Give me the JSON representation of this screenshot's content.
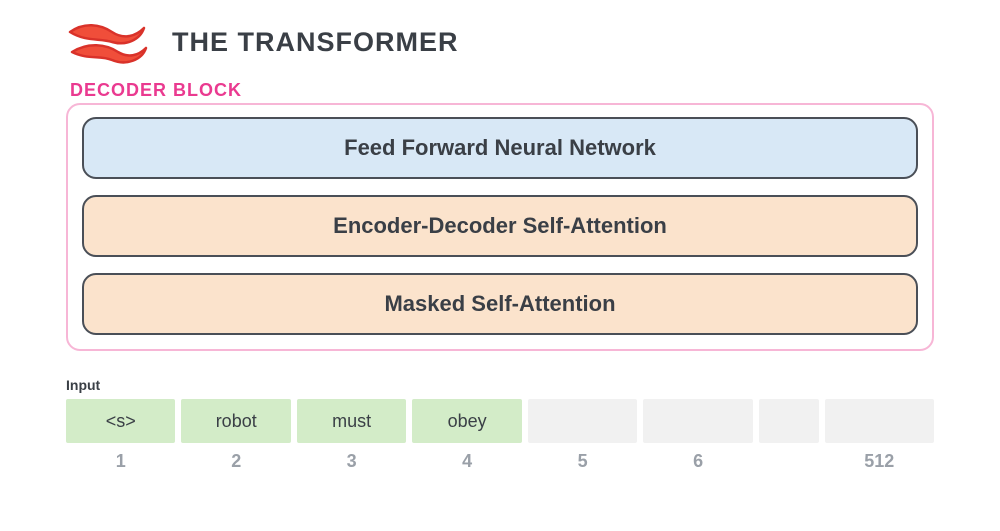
{
  "header": {
    "title": "THE TRANSFORMER",
    "title_color": "#3a3f46",
    "logo_colors": {
      "stroke": "#d9322a",
      "fill": "#f04e3a"
    }
  },
  "decoder": {
    "label": "DECODER BLOCK",
    "label_color": "#ea3a90",
    "border_color": "#f7b6d6",
    "background": "#ffffff",
    "layers": [
      {
        "label": "Feed Forward Neural Network",
        "bg": "#d8e8f6",
        "border": "#4a4f57",
        "text": "#3a3f46"
      },
      {
        "label": "Encoder-Decoder Self-Attention",
        "bg": "#fbe3cc",
        "border": "#4a4f57",
        "text": "#3a3f46"
      },
      {
        "label": "Masked Self-Attention",
        "bg": "#fbe3cc",
        "border": "#4a4f57",
        "text": "#3a3f46"
      }
    ]
  },
  "input": {
    "label": "Input",
    "label_color": "#3a3f46",
    "cells": [
      {
        "text": "<s>",
        "index": "1",
        "filled": true,
        "width": 110
      },
      {
        "text": "robot",
        "index": "2",
        "filled": true,
        "width": 110
      },
      {
        "text": "must",
        "index": "3",
        "filled": true,
        "width": 110
      },
      {
        "text": "obey",
        "index": "4",
        "filled": true,
        "width": 110
      },
      {
        "text": "",
        "index": "5",
        "filled": false,
        "width": 110
      },
      {
        "text": "",
        "index": "6",
        "filled": false,
        "width": 110
      },
      {
        "text": "",
        "index": "",
        "filled": false,
        "width": 60
      },
      {
        "text": "",
        "index": "512",
        "filled": false,
        "width": 110
      }
    ],
    "filled_bg": "#d3ecc8",
    "empty_bg": "#f1f1f1",
    "text_color": "#3a3f46",
    "index_color": "#9aa0a8"
  }
}
